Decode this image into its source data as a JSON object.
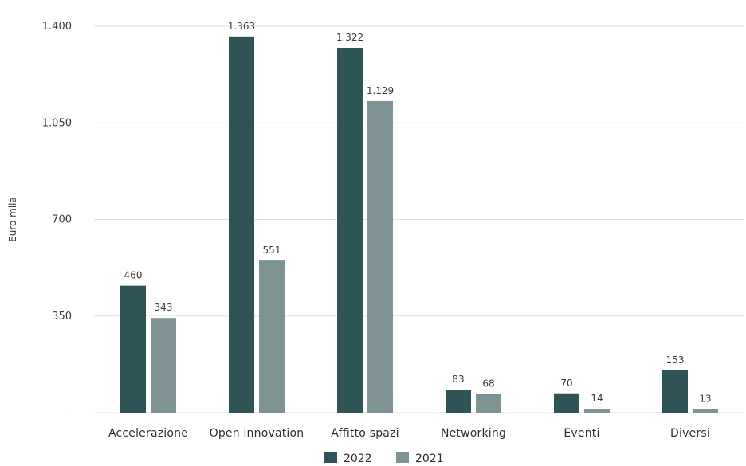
{
  "chart_data": {
    "type": "bar",
    "categories": [
      "Accelerazione",
      "Open innovation",
      "Affitto spazi",
      "Networking",
      "Eventi",
      "Diversi"
    ],
    "series": [
      {
        "name": "2022",
        "values": [
          460,
          1363,
          1322,
          83,
          70,
          153
        ],
        "labels": [
          "460",
          "1.363",
          "1.322",
          "83",
          "70",
          "153"
        ],
        "color": "#2f5456"
      },
      {
        "name": "2021",
        "values": [
          343,
          551,
          1129,
          68,
          14,
          13
        ],
        "labels": [
          "343",
          "551",
          "1.129",
          "68",
          "14",
          "13"
        ],
        "color": "#7f9294"
      }
    ],
    "ylabel": "Euro mila",
    "ylim": [
      0,
      1400
    ],
    "yticks": [
      0,
      350,
      700,
      1050,
      1400
    ],
    "ytick_labels": [
      "-",
      "350",
      "700",
      "1.050",
      "1.400"
    ],
    "grid": true,
    "legend_position": "bottom-center"
  }
}
